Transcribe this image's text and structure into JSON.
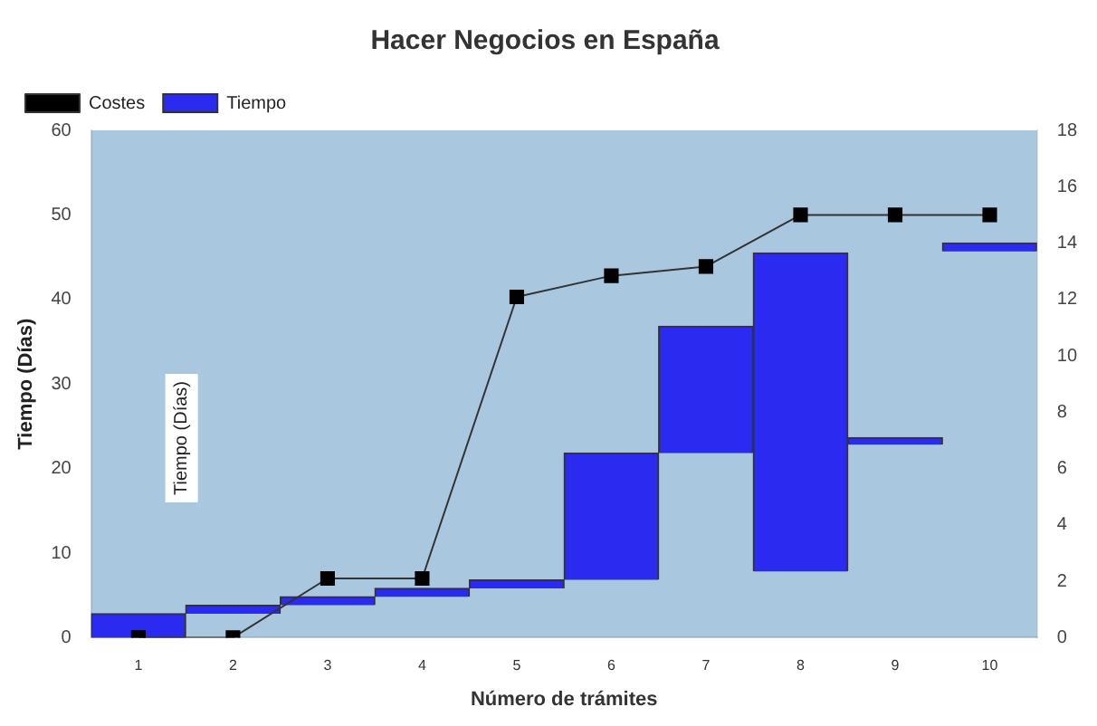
{
  "chart_data": {
    "type": "bar",
    "title": "Hacer Negocios en España",
    "xlabel": "Número de trámites",
    "ylabel": "Tiempo (Días)",
    "categories": [
      "1",
      "2",
      "3",
      "4",
      "5",
      "6",
      "7",
      "8",
      "9",
      "10"
    ],
    "series": [
      {
        "name": "Costes",
        "type": "line",
        "color": "#000000",
        "marker": "square",
        "values": [
          0,
          0,
          7,
          7,
          40.3,
          42.8,
          43.9,
          50,
          50,
          50
        ]
      },
      {
        "name": "Tiempo",
        "axis": "y2",
        "color": "#2a2af0",
        "base": [
          0,
          0.85,
          1.15,
          1.45,
          1.75,
          2.05,
          6.55,
          2.35,
          6.85,
          13.7
        ],
        "values": [
          0.85,
          0.3,
          0.3,
          0.3,
          0.3,
          4.5,
          4.5,
          11.3,
          0.25,
          0.3
        ]
      }
    ],
    "ylim": [
      0,
      60
    ],
    "yticks": [
      0,
      10,
      20,
      30,
      40,
      50,
      60
    ],
    "y2lim": [
      0,
      18
    ],
    "y2ticks": [
      0,
      2,
      4,
      6,
      8,
      10,
      12,
      14,
      16,
      18
    ],
    "annotations": [
      "Tiempo (Días)"
    ],
    "grid": false,
    "legend": "top left"
  }
}
